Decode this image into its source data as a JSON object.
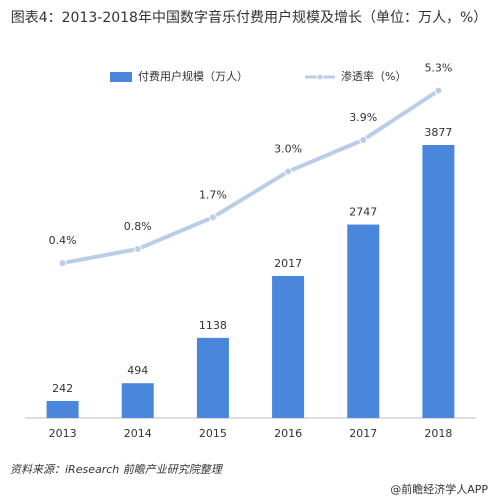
{
  "chart_data": {
    "type": "bar-line",
    "title": "图表4：2013-2018年中国数字音乐付费用户规模及增长（单位：万人，%）",
    "categories": [
      "2013",
      "2014",
      "2015",
      "2016",
      "2017",
      "2018"
    ],
    "series": [
      {
        "name": "付费用户规模（万人）",
        "type": "bar",
        "color": "#4a86dc",
        "values": [
          242,
          494,
          1138,
          2017,
          2747,
          3877
        ]
      },
      {
        "name": "渗透率（%）",
        "type": "line",
        "axis": "y2",
        "color": "#b9cde8",
        "values": [
          0.4,
          0.8,
          1.7,
          3.0,
          3.9,
          5.3
        ],
        "value_labels": [
          "0.4%",
          "0.8%",
          "1.7%",
          "3.0%",
          "3.9%",
          "5.3%"
        ]
      }
    ],
    "ylim": [
      0,
      4800
    ],
    "y2lim": [
      -4,
      5.6
    ],
    "legend": "top",
    "source": "资料来源：iResearch 前瞻产业研究院整理",
    "brand": "@前瞻经济学人APP"
  }
}
